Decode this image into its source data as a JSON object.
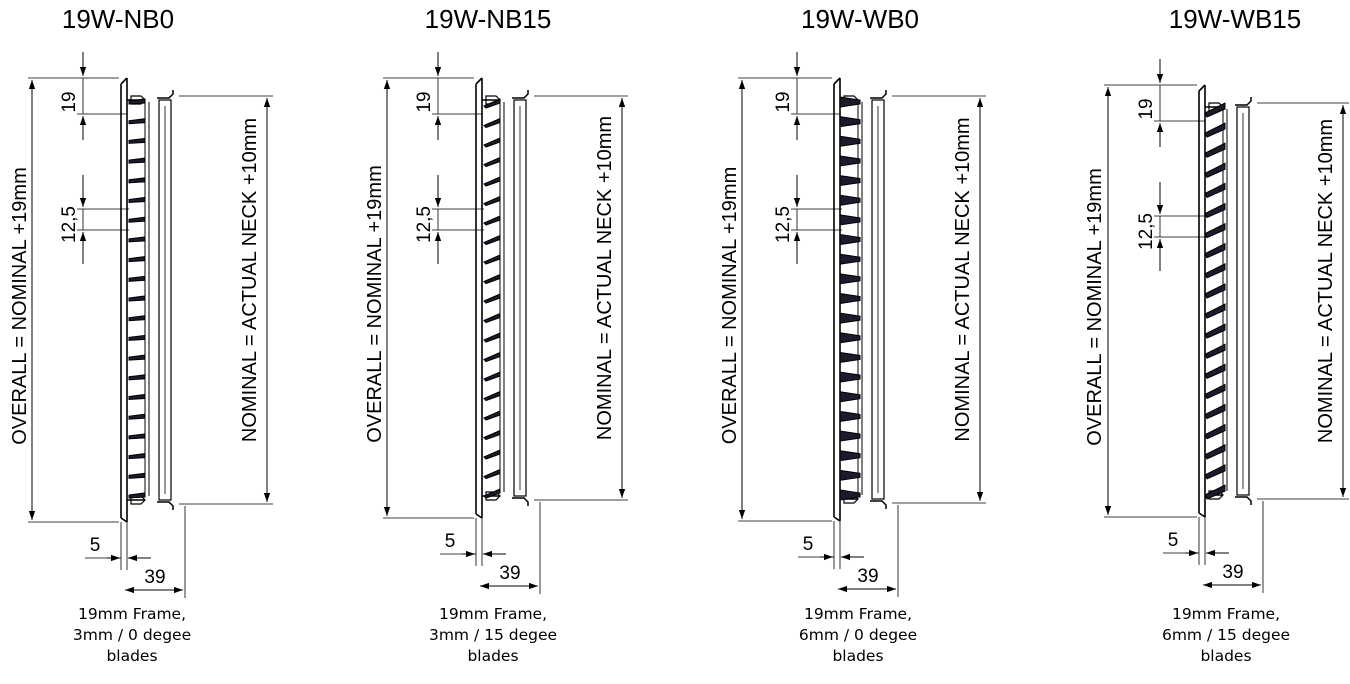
{
  "drawings": [
    {
      "title": "19W-NB0",
      "caption": [
        "19mm Frame,",
        "3mm / 0 degee",
        "blades"
      ],
      "dims": {
        "overall": "OVERALL = NOMINAL +19mm",
        "nominal": "NOMINAL = ACTUAL NECK +10mm",
        "frame": "19",
        "pitch": "12,5",
        "offset": "5",
        "depth": "39"
      },
      "blade_style": "thin-0"
    },
    {
      "title": "19W-NB15",
      "caption": [
        "19mm Frame,",
        "3mm / 15 degee",
        "blades"
      ],
      "dims": {
        "overall": "OVERALL = NOMINAL +19mm",
        "nominal": "NOMINAL = ACTUAL NECK +10mm",
        "frame": "19",
        "pitch": "12,5",
        "offset": "5",
        "depth": "39"
      },
      "blade_style": "thin-15"
    },
    {
      "title": "19W-WB0",
      "caption": [
        "19mm Frame,",
        "6mm / 0 degee",
        "blades"
      ],
      "dims": {
        "overall": "OVERALL = NOMINAL +19mm",
        "nominal": "NOMINAL = ACTUAL NECK +10mm",
        "frame": "19",
        "pitch": "12,5",
        "offset": "5",
        "depth": "39"
      },
      "blade_style": "wide-0"
    },
    {
      "title": "19W-WB15",
      "caption": [
        "19mm Frame,",
        "6mm / 15 degee",
        "blades"
      ],
      "dims": {
        "overall": "OVERALL = NOMINAL +19mm",
        "nominal": "NOMINAL = ACTUAL NECK +10mm",
        "frame": "19",
        "pitch": "12,5",
        "offset": "5",
        "depth": "39"
      },
      "blade_style": "wide-15"
    }
  ]
}
